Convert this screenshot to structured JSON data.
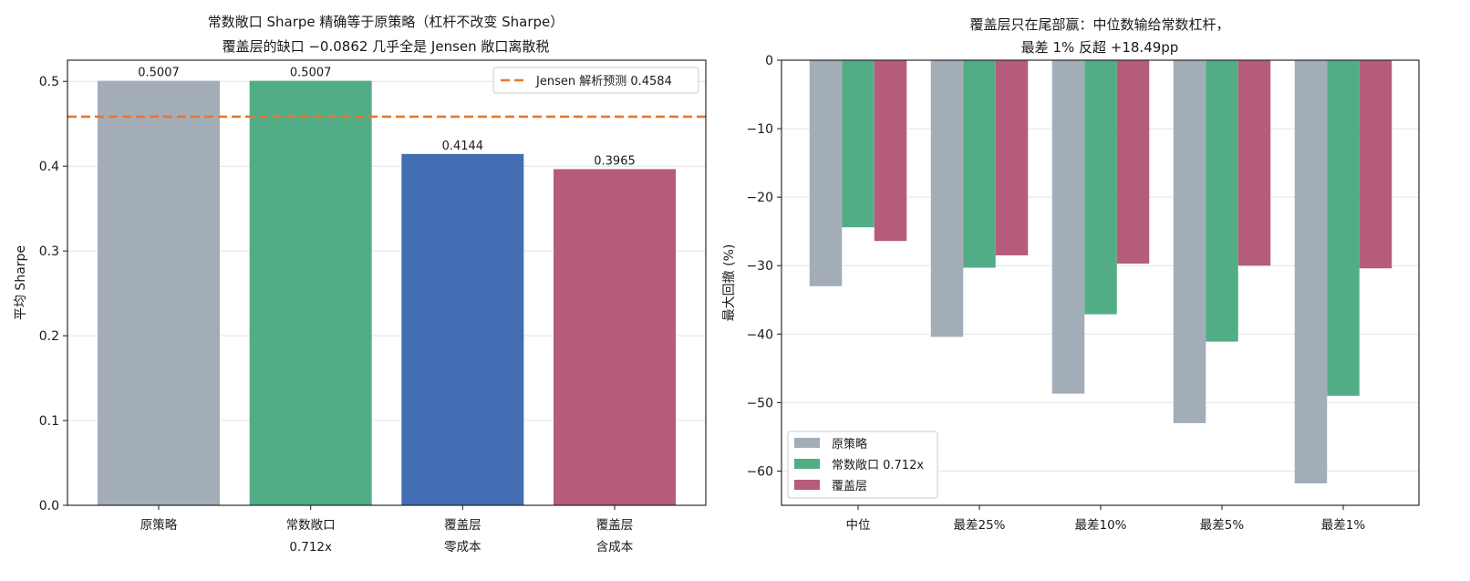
{
  "chart_data": [
    {
      "type": "bar",
      "title_lines": [
        "常数敞口 Sharpe 精确等于原策略（杠杆不改变 Sharpe）",
        "覆盖层的缺口 −0.0862 几乎全是 Jensen 敞口离散税"
      ],
      "xlabel": "",
      "ylabel": "平均 Sharpe",
      "ylim": [
        0,
        0.525
      ],
      "yticks": [
        "0.0",
        "0.1",
        "0.2",
        "0.3",
        "0.4",
        "0.5"
      ],
      "ytick_values": [
        0,
        0.1,
        0.2,
        0.3,
        0.4,
        0.5
      ],
      "grid": true,
      "categories": [
        [
          "原策略"
        ],
        [
          "常数敞口",
          "0.712x"
        ],
        [
          "覆盖层",
          "零成本"
        ],
        [
          "覆盖层",
          "含成本"
        ]
      ],
      "values": [
        0.5007,
        0.5007,
        0.4144,
        0.3965
      ],
      "value_labels": [
        "0.5007",
        "0.5007",
        "0.4144",
        "0.3965"
      ],
      "colors": [
        "#a3adb8",
        "#52ad86",
        "#436eb3",
        "#b55c7b"
      ],
      "reference_line": {
        "value": 0.4584,
        "label": "Jensen 解析预测 0.4584",
        "color": "#e8772e",
        "style": "dashed"
      },
      "legend_position": "top-right"
    },
    {
      "type": "bar",
      "title_lines": [
        "覆盖层只在尾部赢：中位数输给常数杠杆，",
        "最差 1% 反超 +18.49pp"
      ],
      "xlabel": "",
      "ylabel": "最大回撤 (%)",
      "ylim": [
        -65,
        0
      ],
      "yticks": [
        "0",
        "−10",
        "−20",
        "−30",
        "−40",
        "−50",
        "−60"
      ],
      "ytick_values": [
        0,
        -10,
        -20,
        -30,
        -40,
        -50,
        -60
      ],
      "grid": true,
      "categories": [
        "中位",
        "最差25%",
        "最差10%",
        "最差5%",
        "最差1%"
      ],
      "series": [
        {
          "name": "原策略",
          "color": "#a3adb8",
          "values": [
            -33.0,
            -40.4,
            -48.7,
            -53.0,
            -61.8
          ]
        },
        {
          "name": "常数敞口 0.712x",
          "color": "#52ad86",
          "values": [
            -24.4,
            -30.3,
            -37.1,
            -41.1,
            -49.0
          ]
        },
        {
          "name": "覆盖层",
          "color": "#b55c7b",
          "values": [
            -26.4,
            -28.5,
            -29.7,
            -30.0,
            -30.4
          ]
        }
      ],
      "legend_position": "bottom-left"
    }
  ]
}
